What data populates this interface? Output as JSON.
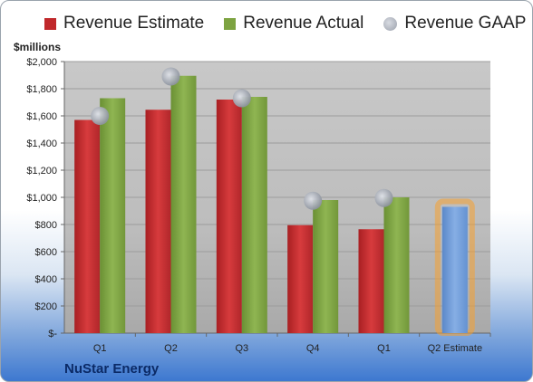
{
  "chart_data": {
    "type": "bar",
    "categories": [
      "Q1",
      "Q2",
      "Q3",
      "Q4",
      "Q1",
      "Q2 Estimate"
    ],
    "series": [
      {
        "name": "Revenue Estimate",
        "values": [
          1570,
          1645,
          1720,
          795,
          765,
          null
        ],
        "color": "#c0282b"
      },
      {
        "name": "Revenue Actual",
        "values": [
          1730,
          1895,
          1740,
          980,
          1000,
          null
        ],
        "color": "#7da341"
      },
      {
        "name": "Revenue GAAP",
        "values": [
          1600,
          1890,
          1730,
          975,
          995,
          null
        ],
        "color": "#a6abb5"
      }
    ],
    "estimate": {
      "category": "Q2 Estimate",
      "value": 930,
      "color": "#6f9bd8",
      "glow_color": "#f5a030"
    },
    "unit_label": "$millions",
    "yticks": [
      "$-",
      "$200",
      "$400",
      "$600",
      "$800",
      "$1,000",
      "$1,200",
      "$1,400",
      "$1,600",
      "$1,800",
      "$2,000"
    ],
    "ylim": [
      0,
      2000
    ],
    "grid": true,
    "legend_position": "top",
    "company": "NuStar Energy"
  }
}
